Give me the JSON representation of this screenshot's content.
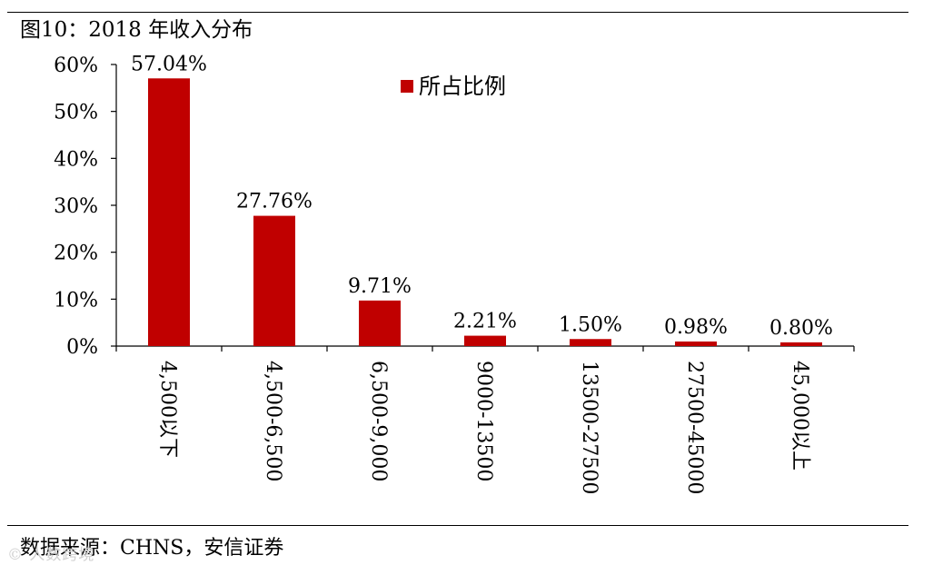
{
  "figure": {
    "title": "图10：2018 年收入分布",
    "source": "数据来源：CHNS，安信证券",
    "watermark": "© 人数跨境"
  },
  "chart_data": {
    "type": "bar",
    "categories": [
      "4,500以下",
      "4,500-6,500",
      "6,500-9,000",
      "9000-13500",
      "13500-27500",
      "27500-45000",
      "45,000以上"
    ],
    "series": [
      {
        "name": "所占比例",
        "values": [
          57.04,
          27.76,
          9.71,
          2.21,
          1.5,
          0.98,
          0.8
        ],
        "labels": [
          "57.04%",
          "27.76%",
          "9.71%",
          "2.21%",
          "1.50%",
          "0.98%",
          "0.80%"
        ],
        "color": "#c00000"
      }
    ],
    "ylim": [
      0,
      60
    ],
    "yticks": [
      0,
      10,
      20,
      30,
      40,
      50,
      60
    ],
    "ytick_labels": [
      "0%",
      "10%",
      "20%",
      "30%",
      "40%",
      "50%",
      "60%"
    ],
    "xlabel": "",
    "ylabel": "",
    "grid": false,
    "legend_position": "top-center"
  }
}
